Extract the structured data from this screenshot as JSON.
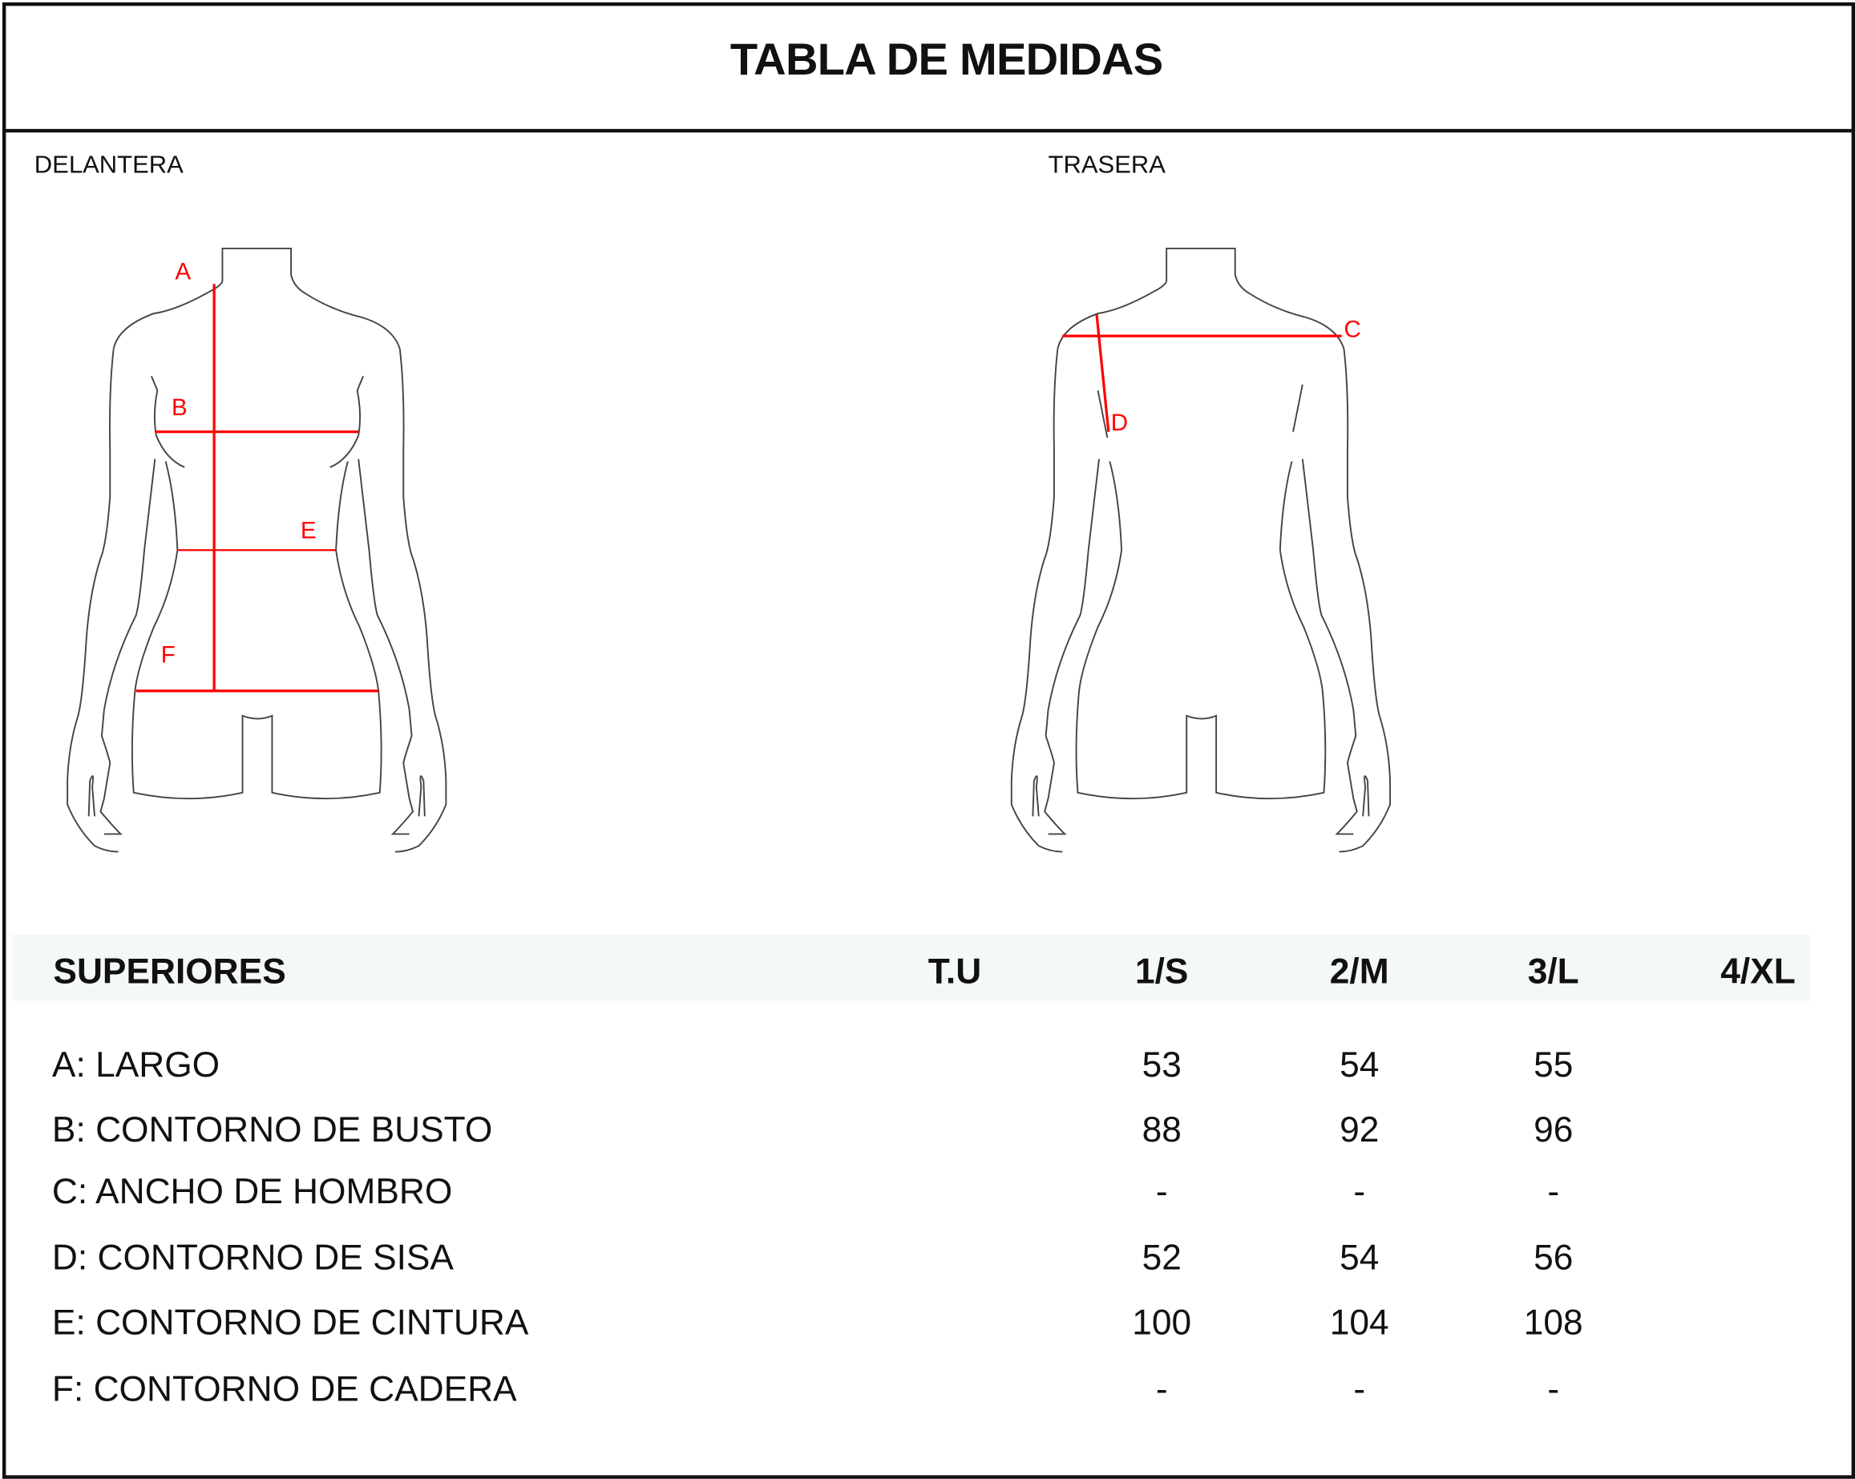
{
  "title": "TABLA DE MEDIDAS",
  "views": {
    "front": "DELANTERA",
    "back": "TRASERA"
  },
  "figure_markers": {
    "A": "A",
    "B": "B",
    "C": "C",
    "D": "D",
    "E": "E",
    "F": "F"
  },
  "colors": {
    "measure_line": "#ff0000",
    "header_bg": "#f4f8f9",
    "outline": "#444444"
  },
  "table": {
    "headers": [
      "SUPERIORES",
      "T.U",
      "1/S",
      "2/M",
      "3/L",
      "4/XL"
    ],
    "rows": [
      {
        "label": "A: LARGO",
        "values": [
          "",
          "53",
          "54",
          "55",
          ""
        ]
      },
      {
        "label": "B: CONTORNO DE BUSTO",
        "values": [
          "",
          "88",
          "92",
          "96",
          ""
        ]
      },
      {
        "label": "C: ANCHO DE HOMBRO",
        "values": [
          "",
          "-",
          "-",
          "-",
          ""
        ]
      },
      {
        "label": "D: CONTORNO DE SISA",
        "values": [
          "",
          "52",
          "54",
          "56",
          ""
        ]
      },
      {
        "label": "E: CONTORNO DE CINTURA",
        "values": [
          "",
          "100",
          "104",
          "108",
          ""
        ]
      },
      {
        "label": "F: CONTORNO DE CADERA",
        "values": [
          "",
          "-",
          "-",
          "-",
          ""
        ]
      }
    ]
  }
}
